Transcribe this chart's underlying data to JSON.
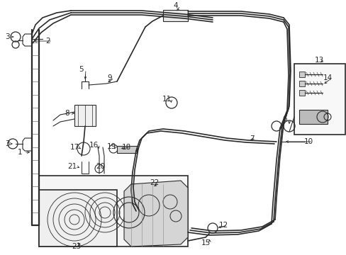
{
  "bg_color": "#ffffff",
  "lc": "#2a2a2a",
  "fig_width": 4.89,
  "fig_height": 3.6,
  "dpi": 100
}
